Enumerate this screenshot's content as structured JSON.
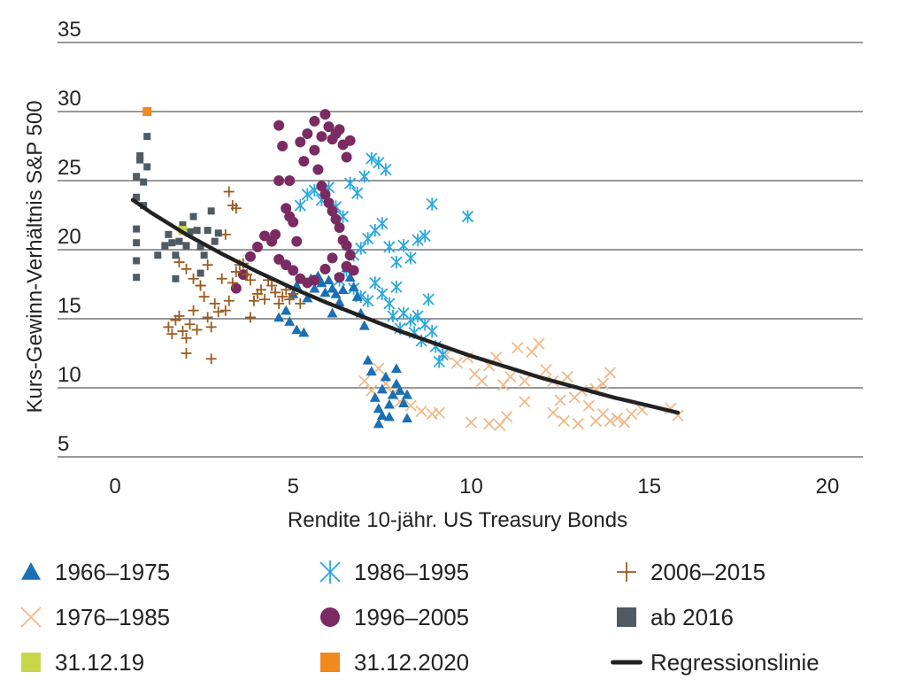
{
  "chart_data": {
    "type": "scatter",
    "title": "",
    "xlabel": "Rendite 10-jähr. US Treasury Bonds",
    "ylabel": "Kurs-Gewinn-Verhältnis S&P 500",
    "xlim": [
      0,
      20
    ],
    "ylim": [
      5,
      35
    ],
    "xticks": [
      "0",
      "5",
      "10",
      "15",
      "20"
    ],
    "yticks": [
      "5",
      "10",
      "15",
      "20",
      "25",
      "30",
      "35"
    ],
    "grid": "horizontal",
    "legend_position": "bottom",
    "series": [
      {
        "name": "1966–1975",
        "marker": "triangle",
        "color": "#1a6fb5",
        "points": [
          [
            4.6,
            15.1
          ],
          [
            4.8,
            15.6
          ],
          [
            4.9,
            14.8
          ],
          [
            5.0,
            16.8
          ],
          [
            5.1,
            17.4
          ],
          [
            5.1,
            14.2
          ],
          [
            5.3,
            14.0
          ],
          [
            5.4,
            16.5
          ],
          [
            5.5,
            17.9
          ],
          [
            5.6,
            17.2
          ],
          [
            5.7,
            18.1
          ],
          [
            5.8,
            17.6
          ],
          [
            5.9,
            16.9
          ],
          [
            6.0,
            17.8
          ],
          [
            6.1,
            17.2
          ],
          [
            6.1,
            15.4
          ],
          [
            6.2,
            16.8
          ],
          [
            6.3,
            16.2
          ],
          [
            6.4,
            17.1
          ],
          [
            6.5,
            18.7
          ],
          [
            6.6,
            18.0
          ],
          [
            6.7,
            17.3
          ],
          [
            6.8,
            16.6
          ],
          [
            6.9,
            15.4
          ],
          [
            7.0,
            14.5
          ],
          [
            7.1,
            12.0
          ],
          [
            7.2,
            11.2
          ],
          [
            7.3,
            9.3
          ],
          [
            7.4,
            8.5
          ],
          [
            7.4,
            7.4
          ],
          [
            7.5,
            9.9
          ],
          [
            7.5,
            8.0
          ],
          [
            7.6,
            10.8
          ],
          [
            7.7,
            8.8
          ],
          [
            7.7,
            7.9
          ],
          [
            7.8,
            9.5
          ],
          [
            7.9,
            11.4
          ],
          [
            7.9,
            10.3
          ],
          [
            8.0,
            9.8
          ],
          [
            8.1,
            8.9
          ],
          [
            8.2,
            9.5
          ],
          [
            8.2,
            7.8
          ]
        ]
      },
      {
        "name": "1976–1985",
        "marker": "x",
        "color": "#f0b98a",
        "points": [
          [
            7.0,
            10.5
          ],
          [
            7.2,
            9.8
          ],
          [
            7.4,
            11.4
          ],
          [
            7.6,
            10.3
          ],
          [
            7.8,
            9.6
          ],
          [
            8.0,
            9.0
          ],
          [
            8.3,
            8.7
          ],
          [
            8.6,
            8.3
          ],
          [
            8.9,
            8.1
          ],
          [
            9.1,
            8.2
          ],
          [
            9.3,
            12.4
          ],
          [
            9.6,
            11.8
          ],
          [
            9.9,
            12.2
          ],
          [
            10.1,
            11.0
          ],
          [
            10.3,
            10.5
          ],
          [
            10.5,
            11.6
          ],
          [
            10.7,
            12.2
          ],
          [
            10.9,
            10.2
          ],
          [
            11.1,
            10.8
          ],
          [
            11.3,
            12.9
          ],
          [
            11.5,
            10.5
          ],
          [
            11.7,
            12.6
          ],
          [
            11.9,
            13.2
          ],
          [
            12.1,
            11.3
          ],
          [
            12.3,
            10.5
          ],
          [
            12.5,
            9.1
          ],
          [
            12.7,
            10.8
          ],
          [
            12.9,
            9.3
          ],
          [
            13.1,
            9.8
          ],
          [
            13.3,
            8.7
          ],
          [
            13.5,
            9.9
          ],
          [
            13.7,
            8.1
          ],
          [
            13.9,
            7.6
          ],
          [
            14.1,
            7.8
          ],
          [
            14.3,
            7.5
          ],
          [
            11.5,
            9.0
          ],
          [
            11.0,
            7.9
          ],
          [
            10.5,
            7.4
          ],
          [
            10.0,
            7.5
          ],
          [
            10.8,
            7.3
          ],
          [
            12.3,
            8.2
          ],
          [
            12.6,
            7.6
          ],
          [
            13.0,
            7.4
          ],
          [
            13.9,
            11.1
          ],
          [
            15.6,
            8.5
          ],
          [
            15.8,
            8.0
          ],
          [
            14.5,
            8.1
          ],
          [
            14.8,
            8.4
          ],
          [
            13.5,
            7.6
          ],
          [
            13.7,
            10.3
          ]
        ]
      },
      {
        "name": "1986–1995",
        "marker": "asterisk",
        "color": "#2aa9de",
        "points": [
          [
            5.2,
            23.2
          ],
          [
            5.4,
            24.0
          ],
          [
            5.6,
            24.3
          ],
          [
            5.8,
            23.6
          ],
          [
            6.0,
            24.5
          ],
          [
            6.2,
            23.1
          ],
          [
            6.4,
            22.4
          ],
          [
            6.6,
            24.8
          ],
          [
            6.8,
            24.1
          ],
          [
            7.0,
            25.3
          ],
          [
            7.2,
            26.6
          ],
          [
            7.4,
            26.3
          ],
          [
            7.6,
            25.8
          ],
          [
            6.7,
            19.6
          ],
          [
            6.9,
            20.1
          ],
          [
            7.1,
            20.8
          ],
          [
            7.3,
            21.4
          ],
          [
            7.5,
            21.9
          ],
          [
            7.7,
            20.2
          ],
          [
            7.9,
            19.1
          ],
          [
            8.1,
            20.3
          ],
          [
            8.3,
            19.4
          ],
          [
            8.5,
            20.7
          ],
          [
            8.7,
            21.0
          ],
          [
            6.3,
            17.8
          ],
          [
            6.5,
            18.5
          ],
          [
            6.7,
            17.2
          ],
          [
            6.9,
            16.6
          ],
          [
            7.1,
            16.3
          ],
          [
            7.3,
            17.6
          ],
          [
            7.5,
            16.8
          ],
          [
            7.7,
            16.1
          ],
          [
            7.9,
            17.3
          ],
          [
            8.1,
            15.4
          ],
          [
            8.3,
            14.9
          ],
          [
            8.5,
            15.2
          ],
          [
            8.7,
            14.6
          ],
          [
            8.9,
            14.1
          ],
          [
            9.0,
            13.0
          ],
          [
            9.2,
            12.4
          ],
          [
            8.8,
            16.4
          ],
          [
            8.9,
            23.3
          ],
          [
            9.9,
            22.4
          ],
          [
            7.8,
            15.2
          ],
          [
            8.0,
            14.3
          ],
          [
            8.4,
            14.0
          ],
          [
            8.6,
            13.4
          ],
          [
            9.1,
            11.9
          ]
        ]
      },
      {
        "name": "1996–2005",
        "marker": "circle",
        "color": "#7a2b62",
        "points": [
          [
            4.6,
            29.0
          ],
          [
            4.7,
            27.5
          ],
          [
            4.6,
            25.0
          ],
          [
            4.8,
            23.0
          ],
          [
            4.9,
            22.4
          ],
          [
            5.0,
            22.0
          ],
          [
            5.1,
            20.6
          ],
          [
            5.2,
            27.8
          ],
          [
            5.3,
            26.4
          ],
          [
            5.4,
            28.4
          ],
          [
            5.6,
            29.3
          ],
          [
            5.6,
            27.2
          ],
          [
            5.8,
            28.2
          ],
          [
            5.9,
            29.8
          ],
          [
            6.0,
            28.9
          ],
          [
            6.1,
            28.0
          ],
          [
            6.2,
            28.4
          ],
          [
            6.3,
            28.7
          ],
          [
            6.4,
            27.6
          ],
          [
            6.5,
            26.7
          ],
          [
            6.6,
            27.9
          ],
          [
            5.7,
            25.8
          ],
          [
            5.8,
            24.6
          ],
          [
            5.9,
            24.0
          ],
          [
            6.0,
            23.4
          ],
          [
            6.1,
            22.8
          ],
          [
            6.2,
            22.2
          ],
          [
            6.3,
            21.6
          ],
          [
            6.4,
            20.7
          ],
          [
            6.5,
            20.3
          ],
          [
            6.6,
            19.6
          ],
          [
            6.7,
            18.5
          ],
          [
            6.5,
            18.8
          ],
          [
            6.3,
            18.0
          ],
          [
            6.1,
            19.4
          ],
          [
            5.9,
            18.6
          ],
          [
            5.6,
            17.8
          ],
          [
            5.4,
            17.6
          ],
          [
            5.2,
            17.9
          ],
          [
            5.0,
            18.5
          ],
          [
            4.8,
            18.9
          ],
          [
            4.6,
            19.3
          ],
          [
            4.4,
            20.6
          ],
          [
            4.2,
            21.0
          ],
          [
            4.0,
            20.2
          ],
          [
            3.8,
            19.5
          ],
          [
            3.6,
            18.2
          ],
          [
            3.4,
            17.2
          ],
          [
            4.5,
            21.1
          ],
          [
            4.9,
            25.0
          ]
        ]
      },
      {
        "name": "2006–2015",
        "marker": "plus",
        "color": "#9c5a1e",
        "points": [
          [
            3.2,
            24.2
          ],
          [
            3.3,
            23.2
          ],
          [
            3.4,
            23.0
          ],
          [
            3.1,
            21.1
          ],
          [
            1.5,
            14.4
          ],
          [
            1.6,
            13.9
          ],
          [
            1.7,
            14.9
          ],
          [
            1.8,
            15.2
          ],
          [
            1.9,
            14.1
          ],
          [
            2.0,
            13.6
          ],
          [
            2.0,
            12.5
          ],
          [
            2.1,
            14.6
          ],
          [
            2.2,
            15.6
          ],
          [
            2.3,
            14.2
          ],
          [
            2.4,
            17.4
          ],
          [
            2.5,
            16.6
          ],
          [
            2.6,
            15.1
          ],
          [
            2.7,
            14.4
          ],
          [
            2.7,
            12.1
          ],
          [
            2.8,
            16.1
          ],
          [
            2.9,
            15.5
          ],
          [
            3.0,
            17.9
          ],
          [
            3.1,
            15.6
          ],
          [
            3.2,
            16.3
          ],
          [
            3.3,
            17.6
          ],
          [
            3.4,
            18.4
          ],
          [
            3.5,
            18.9
          ],
          [
            3.6,
            19.0
          ],
          [
            3.7,
            18.2
          ],
          [
            3.8,
            17.8
          ],
          [
            3.9,
            16.3
          ],
          [
            4.0,
            16.8
          ],
          [
            4.1,
            17.1
          ],
          [
            4.2,
            16.4
          ],
          [
            4.3,
            17.8
          ],
          [
            4.4,
            17.4
          ],
          [
            4.5,
            16.9
          ],
          [
            4.6,
            16.1
          ],
          [
            4.7,
            16.6
          ],
          [
            4.8,
            17.1
          ],
          [
            4.9,
            16.4
          ],
          [
            5.0,
            16.8
          ],
          [
            5.2,
            16.1
          ],
          [
            1.8,
            19.1
          ],
          [
            2.0,
            18.6
          ],
          [
            2.2,
            17.9
          ],
          [
            2.4,
            17.4
          ],
          [
            2.6,
            18.9
          ],
          [
            3.8,
            15.1
          ]
        ]
      },
      {
        "name": "ab 2016",
        "marker": "square",
        "color": "#4e5b63",
        "points": [
          [
            0.6,
            25.3
          ],
          [
            0.6,
            23.8
          ],
          [
            0.6,
            21.5
          ],
          [
            0.6,
            20.5
          ],
          [
            0.6,
            19.2
          ],
          [
            0.6,
            18.0
          ],
          [
            0.7,
            26.8
          ],
          [
            0.7,
            26.5
          ],
          [
            0.8,
            24.9
          ],
          [
            0.8,
            23.2
          ],
          [
            0.9,
            28.2
          ],
          [
            0.9,
            26.0
          ],
          [
            1.2,
            19.6
          ],
          [
            1.4,
            20.3
          ],
          [
            1.5,
            21.1
          ],
          [
            1.6,
            20.5
          ],
          [
            1.7,
            19.6
          ],
          [
            1.8,
            20.6
          ],
          [
            1.9,
            21.8
          ],
          [
            2.0,
            20.3
          ],
          [
            2.1,
            21.3
          ],
          [
            2.2,
            22.4
          ],
          [
            2.3,
            21.4
          ],
          [
            2.4,
            20.2
          ],
          [
            2.5,
            19.6
          ],
          [
            2.6,
            21.4
          ],
          [
            2.7,
            22.8
          ],
          [
            2.8,
            20.6
          ],
          [
            2.9,
            21.2
          ],
          [
            1.7,
            17.9
          ],
          [
            2.4,
            18.3
          ]
        ]
      },
      {
        "name": "31.12.19",
        "marker": "square",
        "color": "#c8d649",
        "points": [
          [
            1.9,
            21.4
          ]
        ]
      },
      {
        "name": "31.12.2020",
        "marker": "square",
        "color": "#f08a1e",
        "points": [
          [
            0.9,
            30.0
          ]
        ]
      },
      {
        "name": "Regressionslinie",
        "marker": "line",
        "color": "#222222",
        "points": [
          [
            0.5,
            23.6
          ],
          [
            1.0,
            22.7
          ],
          [
            2.0,
            21.1
          ],
          [
            3.0,
            19.7
          ],
          [
            4.0,
            18.4
          ],
          [
            5.0,
            17.2
          ],
          [
            6.0,
            16.1
          ],
          [
            7.0,
            15.1
          ],
          [
            8.0,
            14.1
          ],
          [
            9.0,
            13.2
          ],
          [
            10.0,
            12.3
          ],
          [
            11.0,
            11.5
          ],
          [
            12.0,
            10.7
          ],
          [
            13.0,
            10.0
          ],
          [
            14.0,
            9.3
          ],
          [
            15.0,
            8.7
          ],
          [
            15.8,
            8.2
          ]
        ]
      }
    ]
  }
}
